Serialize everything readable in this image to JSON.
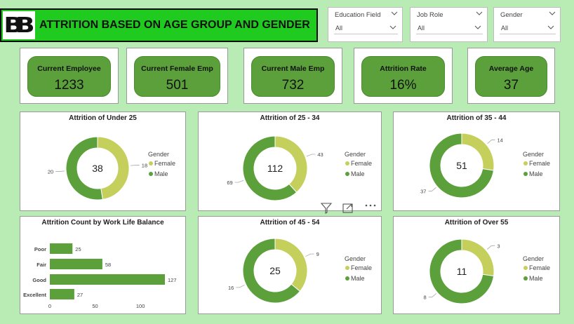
{
  "header": {
    "logo_text": "BB",
    "title": "ATTRITION BASED ON AGE GROUP AND GENDER"
  },
  "slicers": [
    {
      "label": "Education Field",
      "value": "All"
    },
    {
      "label": "Job Role",
      "value": "All"
    },
    {
      "label": "Gender",
      "value": "All"
    }
  ],
  "kpis": [
    {
      "label": "Current Employee",
      "value": "1233"
    },
    {
      "label": "Current Female Emp",
      "value": "501"
    },
    {
      "label": "Current Male Emp",
      "value": "732"
    },
    {
      "label": "Attrition Rate",
      "value": "16%"
    },
    {
      "label": "Average Age",
      "value": "37"
    }
  ],
  "colors": {
    "female": "#c5cf5c",
    "male": "#5ba03b",
    "bar": "#5ba03b",
    "title_bg": "#1fcb1f",
    "page_bg": "#b9ebb5"
  },
  "icons": [
    "filter-icon",
    "focus-mode-icon",
    "more-options-icon",
    "chevron-down-icon"
  ],
  "chart_data": [
    {
      "type": "pie",
      "title": "Attrition of Under 25",
      "center_label": "38",
      "legend_title": "Gender",
      "labels": [
        "Female",
        "Male"
      ],
      "values": [
        18,
        20
      ]
    },
    {
      "type": "pie",
      "title": "Attrition of 25 - 34",
      "center_label": "112",
      "legend_title": "Gender",
      "labels": [
        "Female",
        "Male"
      ],
      "values": [
        43,
        69
      ]
    },
    {
      "type": "pie",
      "title": "Attrition of 35 - 44",
      "center_label": "51",
      "legend_title": "Gender",
      "labels": [
        "Female",
        "Male"
      ],
      "values": [
        14,
        37
      ]
    },
    {
      "type": "bar",
      "orientation": "horizontal",
      "title": "Attrition Count by Work Life Balance",
      "categories": [
        "Poor",
        "Fair",
        "Good",
        "Excellent"
      ],
      "values": [
        25,
        58,
        127,
        27
      ],
      "x_ticks": [
        "0",
        "50",
        "100"
      ],
      "xlim": [
        0,
        127
      ]
    },
    {
      "type": "pie",
      "title": "Attrition of 45 - 54",
      "center_label": "25",
      "legend_title": "Gender",
      "labels": [
        "Female",
        "Male"
      ],
      "values": [
        9,
        16
      ]
    },
    {
      "type": "pie",
      "title": "Attrition of Over 55",
      "center_label": "11",
      "legend_title": "Gender",
      "labels": [
        "Female",
        "Male"
      ],
      "values": [
        3,
        8
      ]
    }
  ]
}
